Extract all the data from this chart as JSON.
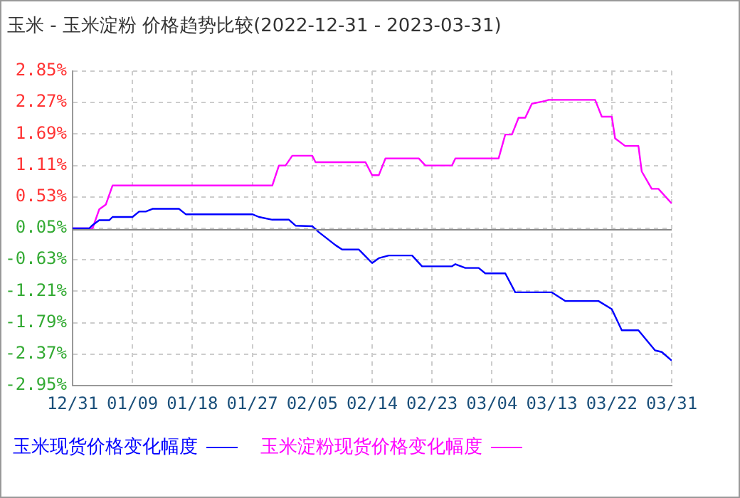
{
  "chart_data": {
    "type": "line",
    "title": "玉米 - 玉米淀粉 价格趋势比较(2022-12-31 - 2023-03-31)",
    "xlim": [
      "2022-12-31",
      "2023-03-31"
    ],
    "xticks": [
      {
        "value": "2022-12-31",
        "label": "12/31"
      },
      {
        "value": "2023-01-09",
        "label": "01/09"
      },
      {
        "value": "2023-01-18",
        "label": "01/18"
      },
      {
        "value": "2023-01-27",
        "label": "01/27"
      },
      {
        "value": "2023-02-05",
        "label": "02/05"
      },
      {
        "value": "2023-02-14",
        "label": "02/14"
      },
      {
        "value": "2023-02-23",
        "label": "02/23"
      },
      {
        "value": "2023-03-04",
        "label": "03/04"
      },
      {
        "value": "2023-03-13",
        "label": "03/13"
      },
      {
        "value": "2023-03-22",
        "label": "03/22"
      },
      {
        "value": "2023-03-31",
        "label": "03/31"
      }
    ],
    "ylim": [
      -2.95,
      2.85
    ],
    "yticks": [
      {
        "value": -2.95,
        "label": "-2.95%"
      },
      {
        "value": -2.37,
        "label": "-2.37%"
      },
      {
        "value": -1.79,
        "label": "-1.79%"
      },
      {
        "value": -1.21,
        "label": "-1.21%"
      },
      {
        "value": -0.63,
        "label": "-0.63%"
      },
      {
        "value": -0.05,
        "label": "0.05%"
      },
      {
        "value": 0.53,
        "label": "0.53%"
      },
      {
        "value": 1.11,
        "label": "1.11%"
      },
      {
        "value": 1.69,
        "label": "1.69%"
      },
      {
        "value": 2.27,
        "label": "2.27%"
      },
      {
        "value": 2.85,
        "label": "2.85%"
      }
    ],
    "ref_lines": [
      {
        "axis": "y",
        "value": -0.05,
        "color": "#888888"
      }
    ],
    "grid": true,
    "legend": "bottom",
    "marker": "none",
    "line_style": "solid",
    "series": [
      {
        "name": "玉米现货价格变化幅度",
        "color": "#0000ff",
        "x": [
          "2022-12-31",
          "2023-01-02T12:00",
          "2023-01-03",
          "2023-01-04",
          "2023-01-05T12:00",
          "2023-01-06",
          "2023-01-09",
          "2023-01-10",
          "2023-01-11",
          "2023-01-12",
          "2023-01-16",
          "2023-01-17",
          "2023-01-27",
          "2023-01-28",
          "2023-01-30",
          "2023-02-01T12:00",
          "2023-02-02T12:00",
          "2023-02-05",
          "2023-02-06",
          "2023-02-08T12:00",
          "2023-02-09T12:00",
          "2023-02-12",
          "2023-02-14",
          "2023-02-15",
          "2023-02-16T12:00",
          "2023-02-20",
          "2023-02-21T12:00",
          "2023-02-26",
          "2023-02-26T12:00",
          "2023-02-28",
          "2023-03-02",
          "2023-03-03",
          "2023-03-06",
          "2023-03-07T12:00",
          "2023-03-13",
          "2023-03-15",
          "2023-03-20",
          "2023-03-22",
          "2023-03-23T12:00",
          "2023-03-26",
          "2023-03-28T12:00",
          "2023-03-29T12:00",
          "2023-03-31"
        ],
        "values": [
          -0.05,
          -0.05,
          0.01,
          0.1,
          0.1,
          0.16,
          0.16,
          0.26,
          0.26,
          0.31,
          0.31,
          0.21,
          0.21,
          0.16,
          0.11,
          0.11,
          0,
          -0.01,
          -0.12,
          -0.36,
          -0.44,
          -0.44,
          -0.69,
          -0.6,
          -0.55,
          -0.55,
          -0.75,
          -0.75,
          -0.71,
          -0.78,
          -0.78,
          -0.88,
          -0.88,
          -1.23,
          -1.23,
          -1.39,
          -1.39,
          -1.54,
          -1.93,
          -1.93,
          -2.3,
          -2.33,
          -2.49
        ]
      },
      {
        "name": "玉米淀粉现货价格变化幅度",
        "color": "#ff00ff",
        "x": [
          "2022-12-31",
          "2023-01-03",
          "2023-01-04",
          "2023-01-05",
          "2023-01-06",
          "2023-01-30",
          "2023-01-31",
          "2023-02-01",
          "2023-02-02",
          "2023-02-05",
          "2023-02-05T12:00",
          "2023-02-13",
          "2023-02-14",
          "2023-02-15",
          "2023-02-16",
          "2023-02-21",
          "2023-02-22",
          "2023-02-26",
          "2023-02-26T12:00",
          "2023-03-05",
          "2023-03-06",
          "2023-03-07",
          "2023-03-08",
          "2023-03-09",
          "2023-03-10",
          "2023-03-12",
          "2023-03-12T12:00",
          "2023-03-19T12:00",
          "2023-03-20T12:00",
          "2023-03-22",
          "2023-03-22T12:00",
          "2023-03-24",
          "2023-03-26",
          "2023-03-26T12:00",
          "2023-03-28",
          "2023-03-29",
          "2023-03-31"
        ],
        "values": [
          -0.05,
          -0.05,
          0.3,
          0.39,
          0.74,
          0.74,
          1.11,
          1.11,
          1.29,
          1.29,
          1.17,
          1.17,
          0.93,
          0.93,
          1.24,
          1.24,
          1.11,
          1.11,
          1.24,
          1.24,
          1.68,
          1.68,
          1.99,
          1.99,
          2.25,
          2.3,
          2.32,
          2.32,
          2.01,
          2.01,
          1.61,
          1.47,
          1.47,
          1,
          0.68,
          0.68,
          0.41
        ]
      }
    ]
  }
}
